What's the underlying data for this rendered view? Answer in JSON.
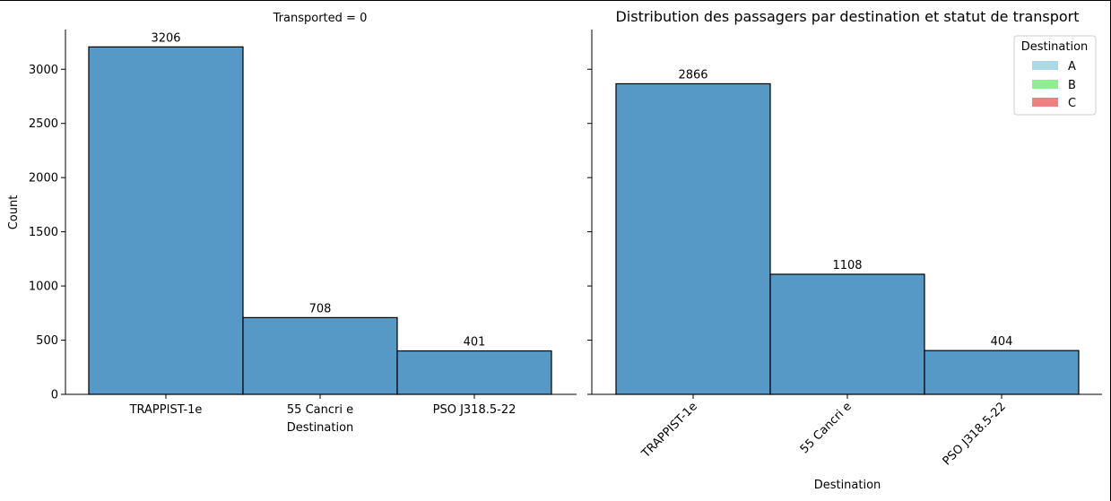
{
  "colors": {
    "bar_fill": "#5799c6",
    "bar_edge": "#000000",
    "legend_A": "#add8e6",
    "legend_B": "#90ee90",
    "legend_C": "#f08080"
  },
  "chart_data": [
    {
      "type": "bar",
      "title": "Transported = 0",
      "xlabel": "Destination",
      "ylabel": "Count",
      "categories": [
        "TRAPPIST-1e",
        "55 Cancri e",
        "PSO J318.5-22"
      ],
      "values": [
        3206,
        708,
        401
      ],
      "data_labels": [
        "3206",
        "708",
        "401"
      ],
      "ylim": [
        0,
        3366
      ],
      "yticks": [
        0,
        500,
        1000,
        1500,
        2000,
        2500,
        3000
      ],
      "ytick_labels": [
        "0",
        "500",
        "1000",
        "1500",
        "2000",
        "2500",
        "3000"
      ],
      "xtick_rotation": 0,
      "grid": false
    },
    {
      "type": "bar",
      "title": "Distribution des passagers par destination et statut de transport",
      "xlabel": "Destination",
      "ylabel": "",
      "categories": [
        "TRAPPIST-1e",
        "55 Cancri e",
        "PSO J318.5-22"
      ],
      "values": [
        2866,
        1108,
        404
      ],
      "data_labels": [
        "2866",
        "1108",
        "404"
      ],
      "ylim": [
        0,
        3366
      ],
      "yticks": [
        0,
        500,
        1000,
        1500,
        2000,
        2500,
        3000
      ],
      "ytick_labels": [],
      "xtick_rotation": -45,
      "grid": false,
      "legend": {
        "title": "Destination",
        "placement": "top-right",
        "entries": [
          "A",
          "B",
          "C"
        ]
      }
    }
  ]
}
